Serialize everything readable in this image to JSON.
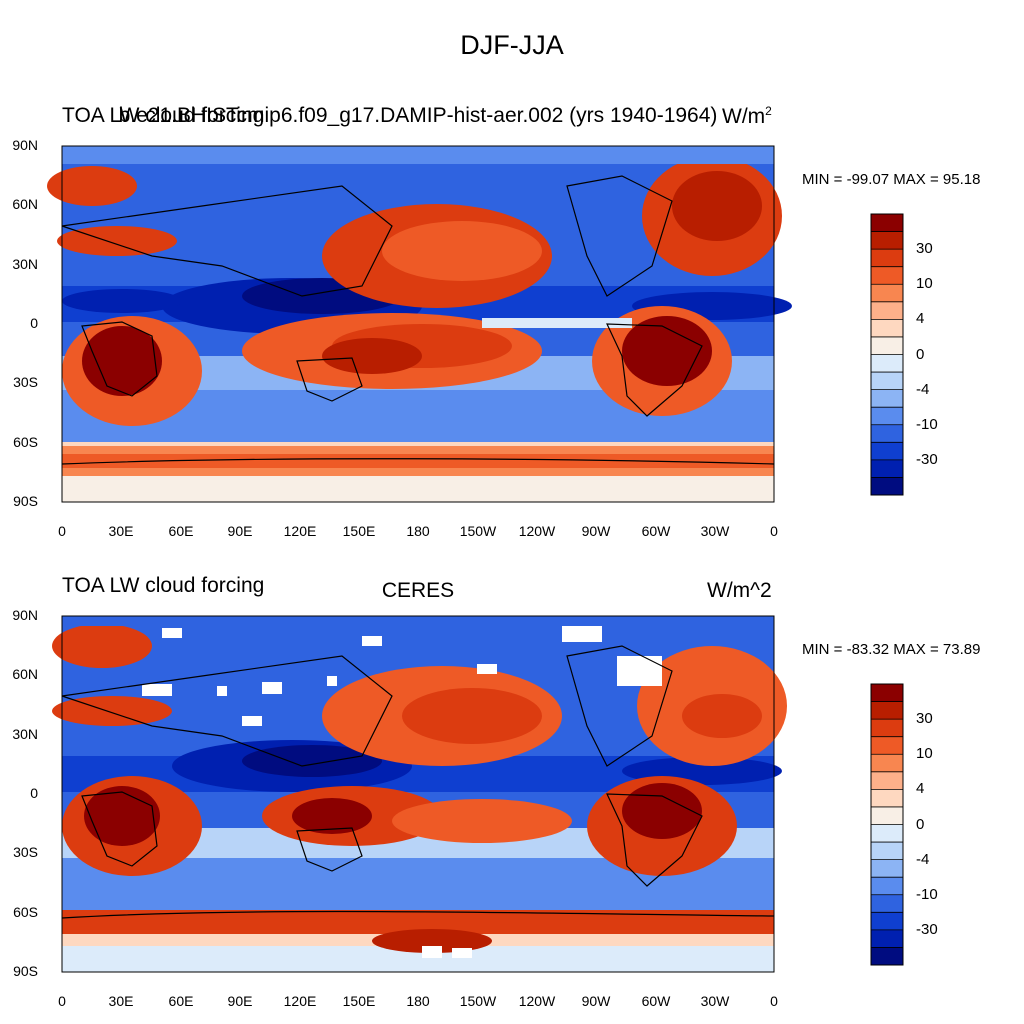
{
  "figure_title": "DJF-JJA",
  "lat_labels": [
    "90N",
    "60N",
    "30N",
    "0",
    "30S",
    "60S",
    "90S"
  ],
  "lon_labels": [
    "0",
    "30E",
    "60E",
    "90E",
    "120E",
    "150E",
    "180",
    "150W",
    "120W",
    "90W",
    "60W",
    "30W",
    "0"
  ],
  "colorbar_labels": [
    "30",
    "10",
    "4",
    "0",
    "-4",
    "-10",
    "-30"
  ],
  "colorbar_colors": [
    "#8b0000",
    "#b81e00",
    "#dc3c10",
    "#ee5a26",
    "#f88650",
    "#fdb08a",
    "#fed8c0",
    "#f8efe6",
    "#dcebfa",
    "#b8d4f8",
    "#8cb4f4",
    "#5a8cee",
    "#2f63e0",
    "#0f3fd0",
    "#0020b0",
    "#000c80"
  ],
  "panels": [
    {
      "title_left": "TOA LW cloud forcing",
      "title_center": "b.e21.BHISTcmip6.f09_g17.DAMIP-hist-aer.002 (yrs 1940-1964)",
      "units": "W/m",
      "units_sup": "2",
      "min_max": "MIN = -99.07 MAX =  95.18",
      "land_mask": false
    },
    {
      "title_left": "TOA LW cloud forcing",
      "title_center": "CERES",
      "units": "W/m^2",
      "units_sup": "",
      "min_max": "MIN = -83.32 MAX =  73.89",
      "land_mask": true
    }
  ]
}
